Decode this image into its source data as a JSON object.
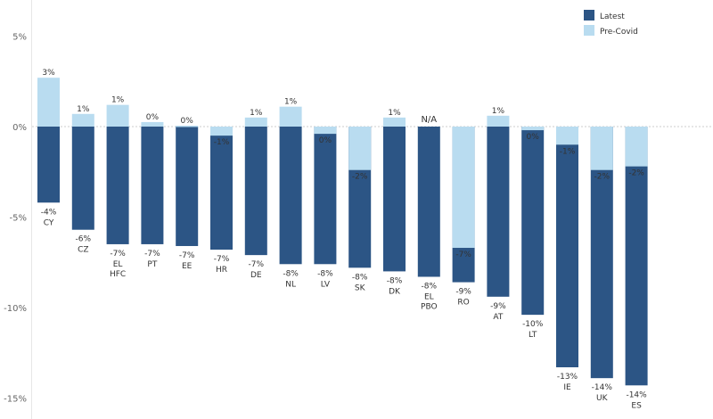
{
  "chart_data": {
    "type": "bar",
    "ylim": [
      -15,
      5
    ],
    "yticks": [
      5,
      0,
      -5,
      -10,
      -15
    ],
    "ytick_labels": [
      "5%",
      "0%",
      "-5%",
      "-10%",
      "-15%"
    ],
    "legend": {
      "placement": "top-right",
      "entries": [
        "Latest",
        "Pre-Covid"
      ]
    },
    "colors": {
      "latest": "#2c5585",
      "precovid": "#b9dcf0",
      "zero_line": "#cccccc"
    },
    "categories": [
      {
        "label": "CY",
        "latest": -4.2,
        "precovid": 2.7,
        "latest_label": "-4%",
        "precovid_label": "3%"
      },
      {
        "label": "CZ",
        "latest": -5.7,
        "precovid": 0.7,
        "latest_label": "-6%",
        "precovid_label": "1%"
      },
      {
        "label": "EL\nHFC",
        "latest": -6.5,
        "precovid": 1.2,
        "latest_label": "-7%",
        "precovid_label": "1%"
      },
      {
        "label": "PT",
        "latest": -6.5,
        "precovid": 0.25,
        "latest_label": "-7%",
        "precovid_label": "0%"
      },
      {
        "label": "EE",
        "latest": -6.6,
        "precovid": 0.05,
        "latest_label": "-7%",
        "precovid_label": "0%"
      },
      {
        "label": "HR",
        "latest": -6.8,
        "precovid": -0.5,
        "latest_label": "-7%",
        "precovid_label": "-1%"
      },
      {
        "label": "DE",
        "latest": -7.1,
        "precovid": 0.5,
        "latest_label": "-7%",
        "precovid_label": "1%"
      },
      {
        "label": "NL",
        "latest": -7.6,
        "precovid": 1.1,
        "latest_label": "-8%",
        "precovid_label": "1%"
      },
      {
        "label": "LV",
        "latest": -7.6,
        "precovid": -0.4,
        "latest_label": "-8%",
        "precovid_label": "0%"
      },
      {
        "label": "SK",
        "latest": -7.8,
        "precovid": -2.4,
        "latest_label": "-8%",
        "precovid_label": "-2%"
      },
      {
        "label": "DK",
        "latest": -8.0,
        "precovid": 0.5,
        "latest_label": "-8%",
        "precovid_label": "1%"
      },
      {
        "label": "EL\nPBO",
        "latest": -8.3,
        "precovid": null,
        "latest_label": "-8%",
        "precovid_label": "N/A"
      },
      {
        "label": "RO",
        "latest": -8.6,
        "precovid": -6.7,
        "latest_label": "-9%",
        "precovid_label": "-7%"
      },
      {
        "label": "AT",
        "latest": -9.4,
        "precovid": 0.6,
        "latest_label": "-9%",
        "precovid_label": "1%"
      },
      {
        "label": "LT",
        "latest": -10.4,
        "precovid": -0.2,
        "latest_label": "-10%",
        "precovid_label": "0%"
      },
      {
        "label": "IE",
        "latest": -13.3,
        "precovid": -1.0,
        "latest_label": "-13%",
        "precovid_label": "-1%"
      },
      {
        "label": "UK",
        "latest": -13.9,
        "precovid": -2.4,
        "latest_label": "-14%",
        "precovid_label": "-2%"
      },
      {
        "label": "ES",
        "latest": -14.3,
        "precovid": -2.2,
        "latest_label": "-14%",
        "precovid_label": "-2%"
      }
    ]
  }
}
